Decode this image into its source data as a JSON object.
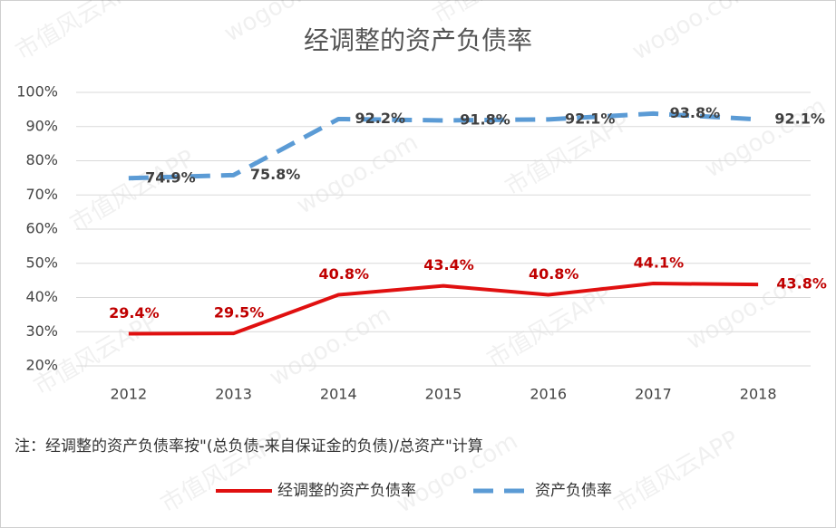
{
  "chart_data": {
    "type": "line",
    "title": "经调整的资产负债率",
    "categories": [
      "2012",
      "2013",
      "2014",
      "2015",
      "2016",
      "2017",
      "2018"
    ],
    "series": [
      {
        "name": "经调整的资产负债率",
        "color": "#e01010",
        "dashed": false,
        "values": [
          29.4,
          29.5,
          40.8,
          43.4,
          40.8,
          44.1,
          43.8
        ],
        "value_labels": [
          "29.4%",
          "29.5%",
          "40.8%",
          "43.4%",
          "40.8%",
          "44.1%",
          "43.8%"
        ]
      },
      {
        "name": "资产负债率",
        "color": "#5b9bd5",
        "dashed": true,
        "values": [
          74.9,
          75.8,
          92.2,
          91.8,
          92.1,
          93.8,
          92.1
        ],
        "value_labels": [
          "74.9%",
          "75.8%",
          "92.2%",
          "91.8%",
          "92.1%",
          "93.8%",
          "92.1%"
        ]
      }
    ],
    "ylim": [
      20,
      100
    ],
    "yticks": [
      {
        "value": 20,
        "label": "20%"
      },
      {
        "value": 30,
        "label": "30%"
      },
      {
        "value": 40,
        "label": "40%"
      },
      {
        "value": 50,
        "label": "50%"
      },
      {
        "value": 60,
        "label": "60%"
      },
      {
        "value": 70,
        "label": "70%"
      },
      {
        "value": 80,
        "label": "80%"
      },
      {
        "value": 90,
        "label": "90%"
      },
      {
        "value": 100,
        "label": "100%"
      }
    ],
    "grid": true,
    "note": "注：经调整的资产负债率按\"(总负债-来自保证金的负债)/总资产\"计算",
    "legend": "bottom",
    "watermark": [
      "市值风云APP",
      "wogoo.com"
    ]
  }
}
